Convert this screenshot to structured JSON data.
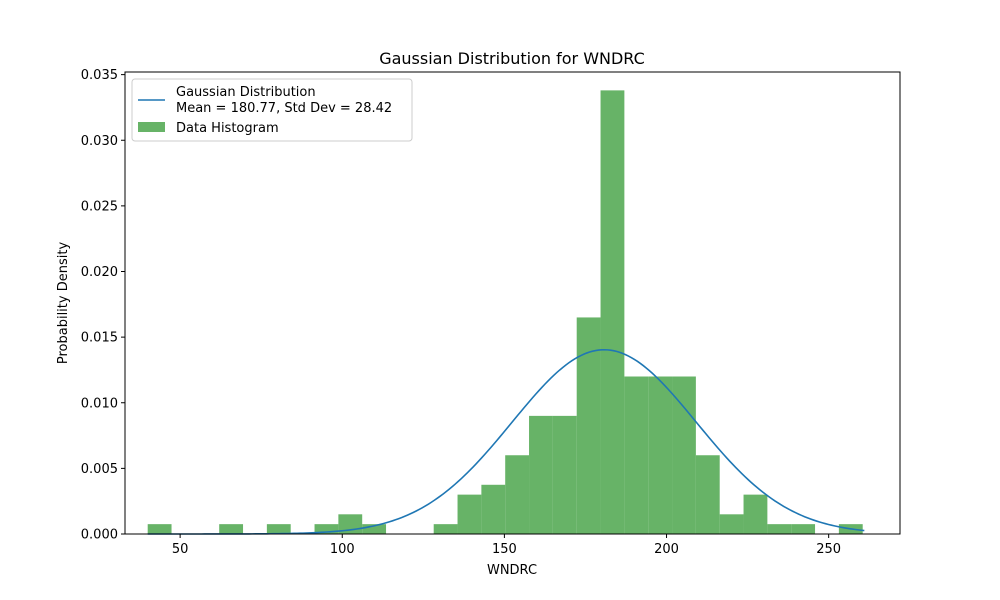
{
  "chart_data": {
    "type": "bar",
    "title": "Gaussian Distribution for WNDRC",
    "xlabel": "WNDRC",
    "ylabel": "Probability Density",
    "xlim": [
      33,
      272
    ],
    "ylim": [
      0,
      0.0352
    ],
    "x_ticks": [
      50,
      100,
      150,
      200,
      250
    ],
    "y_ticks": [
      0.0,
      0.005,
      0.01,
      0.015,
      0.02,
      0.025,
      0.03,
      0.035
    ],
    "x_tick_labels": [
      "50",
      "100",
      "150",
      "200",
      "250"
    ],
    "y_tick_labels": [
      "0.000",
      "0.005",
      "0.010",
      "0.015",
      "0.020",
      "0.025",
      "0.030",
      "0.035"
    ],
    "grid": false,
    "legend_position": "top-left",
    "histogram": {
      "name": "Data Histogram",
      "color": "#4ca64c",
      "bin_start": 40,
      "bin_width": 7.35,
      "densities": [
        0.00075,
        0,
        0,
        0.00075,
        0,
        0.00075,
        0,
        0.00075,
        0.0015,
        0.00075,
        0,
        0,
        0.00075,
        0.003,
        0.00375,
        0.006,
        0.009,
        0.009,
        0.0165,
        0.0338,
        0.012,
        0.012,
        0.012,
        0.006,
        0.0015,
        0.003,
        0.00075,
        0.00075,
        0,
        0.00075
      ]
    },
    "gaussian": {
      "name": "Gaussian Distribution",
      "label_line2": "Mean = 180.77, Std Dev = 28.42",
      "mean": 180.77,
      "std": 28.42,
      "x_range": [
        40,
        261
      ],
      "color": "#1f77b4"
    }
  }
}
